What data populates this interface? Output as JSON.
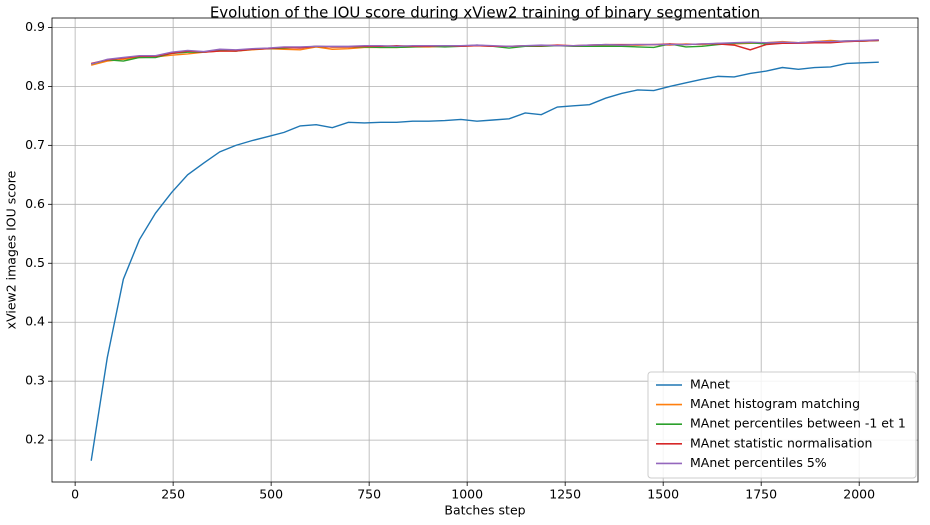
{
  "chart_data": {
    "type": "line",
    "title": "Evolution of the IOU score during xView2 training of binary segmentation",
    "x_label": "Batches step",
    "y_label": "xView2 images IOU score",
    "x": [
      41,
      82,
      123,
      164,
      205,
      246,
      287,
      328,
      369,
      410,
      451,
      492,
      533,
      574,
      615,
      656,
      697,
      738,
      779,
      820,
      861,
      902,
      943,
      984,
      1025,
      1066,
      1107,
      1148,
      1189,
      1230,
      1271,
      1312,
      1353,
      1394,
      1435,
      1476,
      1517,
      1558,
      1599,
      1640,
      1681,
      1722,
      1763,
      1804,
      1845,
      1886,
      1927,
      1968,
      2009,
      2050
    ],
    "series": [
      {
        "name": "MAnet",
        "color": "#1f77b4",
        "values": [
          0.165,
          0.34,
          0.473,
          0.54,
          0.585,
          0.62,
          0.65,
          0.67,
          0.689,
          0.7,
          0.708,
          0.715,
          0.722,
          0.733,
          0.735,
          0.73,
          0.739,
          0.738,
          0.739,
          0.739,
          0.741,
          0.741,
          0.742,
          0.744,
          0.741,
          0.743,
          0.745,
          0.755,
          0.752,
          0.765,
          0.767,
          0.769,
          0.78,
          0.788,
          0.794,
          0.793,
          0.8,
          0.806,
          0.812,
          0.817,
          0.816,
          0.822,
          0.826,
          0.832,
          0.829,
          0.832,
          0.833,
          0.839,
          0.84,
          0.841
        ]
      },
      {
        "name": "MAnet histogram matching",
        "color": "#ff7f0e",
        "values": [
          0.836,
          0.843,
          0.846,
          0.849,
          0.85,
          0.853,
          0.855,
          0.858,
          0.86,
          0.86,
          0.862,
          0.864,
          0.863,
          0.862,
          0.867,
          0.863,
          0.864,
          0.866,
          0.866,
          0.866,
          0.867,
          0.867,
          0.868,
          0.868,
          0.869,
          0.868,
          0.868,
          0.868,
          0.869,
          0.869,
          0.869,
          0.869,
          0.87,
          0.87,
          0.87,
          0.871,
          0.87,
          0.872,
          0.871,
          0.873,
          0.872,
          0.873,
          0.874,
          0.876,
          0.874,
          0.876,
          0.878,
          0.876,
          0.877,
          0.878
        ]
      },
      {
        "name": "MAnet percentiles between -1 et 1",
        "color": "#2ca02c",
        "values": [
          0.838,
          0.845,
          0.843,
          0.849,
          0.849,
          0.856,
          0.858,
          0.858,
          0.861,
          0.86,
          0.863,
          0.864,
          0.865,
          0.866,
          0.868,
          0.867,
          0.867,
          0.867,
          0.866,
          0.866,
          0.867,
          0.868,
          0.867,
          0.868,
          0.87,
          0.868,
          0.865,
          0.868,
          0.868,
          0.869,
          0.868,
          0.868,
          0.868,
          0.868,
          0.867,
          0.866,
          0.872,
          0.867,
          0.868,
          0.871,
          0.873,
          0.874,
          0.872,
          0.874,
          0.874,
          0.875,
          0.876,
          0.877,
          0.877,
          0.878
        ]
      },
      {
        "name": "MAnet statistic normalisation",
        "color": "#d62728",
        "values": [
          0.839,
          0.845,
          0.848,
          0.851,
          0.851,
          0.856,
          0.86,
          0.858,
          0.86,
          0.86,
          0.863,
          0.864,
          0.866,
          0.865,
          0.868,
          0.867,
          0.867,
          0.868,
          0.868,
          0.869,
          0.868,
          0.868,
          0.869,
          0.868,
          0.869,
          0.868,
          0.868,
          0.869,
          0.869,
          0.87,
          0.869,
          0.87,
          0.871,
          0.871,
          0.871,
          0.871,
          0.872,
          0.871,
          0.872,
          0.872,
          0.87,
          0.862,
          0.871,
          0.873,
          0.873,
          0.874,
          0.874,
          0.876,
          0.877,
          0.878
        ]
      },
      {
        "name": "MAnet percentiles 5%",
        "color": "#9467bd",
        "values": [
          0.838,
          0.846,
          0.849,
          0.852,
          0.852,
          0.858,
          0.861,
          0.859,
          0.863,
          0.862,
          0.864,
          0.865,
          0.867,
          0.867,
          0.868,
          0.868,
          0.868,
          0.869,
          0.869,
          0.868,
          0.869,
          0.869,
          0.869,
          0.869,
          0.87,
          0.869,
          0.868,
          0.869,
          0.87,
          0.869,
          0.869,
          0.87,
          0.871,
          0.87,
          0.871,
          0.871,
          0.871,
          0.871,
          0.872,
          0.873,
          0.874,
          0.875,
          0.874,
          0.875,
          0.874,
          0.876,
          0.876,
          0.877,
          0.878,
          0.879
        ]
      }
    ],
    "xlim": [
      -59,
      2150
    ],
    "ylim": [
      0.129,
      0.916
    ],
    "xticks": [
      0,
      250,
      500,
      750,
      1000,
      1250,
      1500,
      1750,
      2000
    ],
    "yticks": [
      0.2,
      0.3,
      0.4,
      0.5,
      0.6,
      0.7,
      0.8,
      0.9
    ],
    "grid": true,
    "legend": "lower right"
  }
}
